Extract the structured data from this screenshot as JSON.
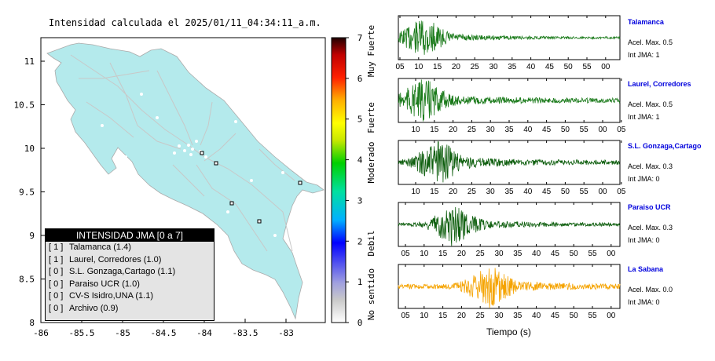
{
  "title": "Intensidad calculada el 2025/01/11_04:34:11_a.m.",
  "map": {
    "x_ticks": [
      "-86",
      "-85.5",
      "-85",
      "-84.5",
      "-84",
      "-83.5",
      "-83"
    ],
    "y_ticks": [
      "11",
      "10.5",
      "10",
      "9.5",
      "9",
      "8.5",
      "8"
    ],
    "land_color": "#b4eaec"
  },
  "colorbar": {
    "ticks": [
      "0",
      "1",
      "2",
      "3",
      "4",
      "5",
      "6",
      "7"
    ],
    "labels": [
      "No sentido",
      "Debil",
      "Moderado",
      "Fuerte",
      "Muy Fuerte"
    ]
  },
  "legend": {
    "title": "INTENSIDAD JMA [0 a 7]",
    "items": [
      {
        "code": "[ 1 ]",
        "name": "Talamanca (1.4)"
      },
      {
        "code": "[ 1 ]",
        "name": "Laurel, Corredores (1.0)"
      },
      {
        "code": "[ 0 ]",
        "name": "S.L. Gonzaga,Cartago (1.1)"
      },
      {
        "code": "[ 0 ]",
        "name": "Paraiso UCR (1.0)"
      },
      {
        "code": "[ 0 ]",
        "name": "CV-S Isidro,UNA (1.1)"
      },
      {
        "code": "[ 0 ]",
        "name": "Archivo (0.9)"
      }
    ]
  },
  "stations": [
    {
      "name": "Talamanca",
      "acel": "Acel. Max. 0.5",
      "int": "Int JMA: 1",
      "color": "#1a7a1a",
      "ticks": [
        "05",
        "10",
        "15",
        "20",
        "25",
        "30",
        "35",
        "40",
        "45",
        "50",
        "55",
        "00"
      ]
    },
    {
      "name": "Laurel, Corredores",
      "acel": "Acel. Max. 0.5",
      "int": "Int JMA: 1",
      "color": "#1a7a1a",
      "ticks": [
        "10",
        "15",
        "20",
        "25",
        "30",
        "35",
        "40",
        "45",
        "50",
        "55",
        "00",
        "05"
      ]
    },
    {
      "name": "S.L. Gonzaga,Cartago",
      "acel": "Acel. Max. 0.3",
      "int": "Int JMA: 0",
      "color": "#0f5f0f",
      "ticks": [
        "10",
        "15",
        "20",
        "25",
        "30",
        "35",
        "40",
        "45",
        "50",
        "55",
        "00",
        "05"
      ]
    },
    {
      "name": "Paraiso UCR",
      "acel": "Acel. Max. 0.3",
      "int": "Int JMA: 0",
      "color": "#0f5f0f",
      "ticks": [
        "05",
        "10",
        "15",
        "20",
        "25",
        "30",
        "35",
        "40",
        "45",
        "50",
        "55",
        "00"
      ]
    },
    {
      "name": "La Sabana",
      "acel": "Acel. Max. 0.0",
      "int": "Int JMA: 0",
      "color": "#f5a300",
      "ticks": [
        "05",
        "10",
        "15",
        "20",
        "25",
        "30",
        "35",
        "40",
        "45",
        "50",
        "55",
        "00"
      ]
    }
  ],
  "xaxis_label": "Tiempo (s)"
}
